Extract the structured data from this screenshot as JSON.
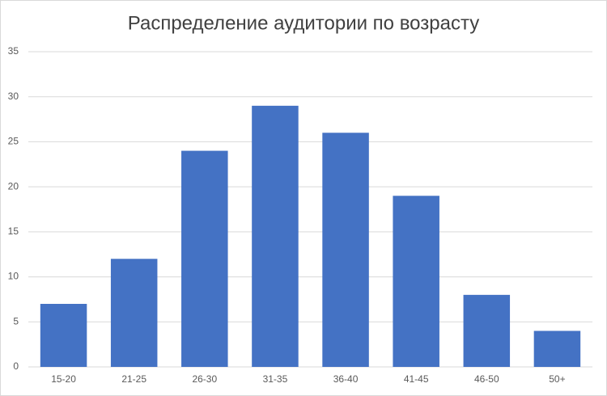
{
  "chart_data": {
    "type": "bar",
    "title": "Распределение аудитории по возрасту",
    "categories": [
      "15-20",
      "21-25",
      "26-30",
      "31-35",
      "36-40",
      "41-45",
      "46-50",
      "50+"
    ],
    "values": [
      7,
      12,
      24,
      29,
      26,
      19,
      8,
      4
    ],
    "color": "#4472c4",
    "ylim": [
      0,
      35
    ],
    "yticks": [
      0,
      5,
      10,
      15,
      20,
      25,
      30,
      35
    ],
    "grid": true
  }
}
